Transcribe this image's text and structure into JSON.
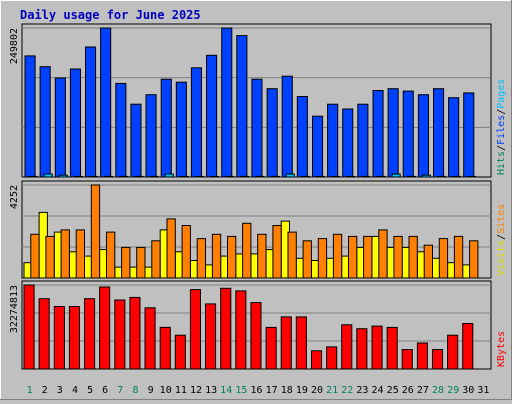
{
  "chart_data": {
    "type": "bar",
    "title": "Daily usage for June 2025",
    "categories": [
      "1",
      "2",
      "3",
      "4",
      "5",
      "6",
      "7",
      "8",
      "9",
      "10",
      "11",
      "12",
      "13",
      "14",
      "15",
      "16",
      "17",
      "18",
      "19",
      "20",
      "21",
      "22",
      "23",
      "24",
      "25",
      "26",
      "27",
      "28",
      "29",
      "30",
      "31"
    ],
    "weekend_days": [
      "1",
      "7",
      "8",
      "14",
      "15",
      "21",
      "22",
      "28",
      "29"
    ],
    "panels": [
      {
        "name": "hits-files-pages",
        "max_label": "249802",
        "ymax": 249802,
        "legend": [
          {
            "label": "Hits",
            "color": "#00805c"
          },
          {
            "label": "/",
            "color": "#000000"
          },
          {
            "label": "Files",
            "color": "#0040ff"
          },
          {
            "label": "/",
            "color": "#000000"
          },
          {
            "label": "Pages",
            "color": "#00c0ff"
          }
        ],
        "series": [
          {
            "name": "Hits",
            "color": "#0040ff",
            "values": [
              203000,
              185000,
              166000,
              181000,
              218000,
              249802,
              157000,
              122000,
              138000,
              164000,
              159000,
              183000,
              204000,
              249802,
              237000,
              164000,
              148000,
              169000,
              135000,
              102000,
              122000,
              114000,
              122000,
              145000,
              148000,
              144000,
              138000,
              148000,
              133000,
              141000,
              0
            ]
          },
          {
            "name": "Pages",
            "color": "#00c0ff",
            "values": [
              1000,
              5000,
              3000,
              1000,
              1000,
              1000,
              1000,
              1000,
              1000,
              5000,
              1000,
              1000,
              1000,
              1000,
              1000,
              1000,
              1000,
              5000,
              1000,
              1000,
              1000,
              1000,
              1000,
              1000,
              5000,
              1000,
              3000,
              1000,
              1000,
              1000,
              0
            ]
          }
        ]
      },
      {
        "name": "visits-sites",
        "max_label": "4252",
        "ymax": 4252,
        "legend": [
          {
            "label": "Visits",
            "color": "#e0e000"
          },
          {
            "label": "/",
            "color": "#000000"
          },
          {
            "label": "Sites",
            "color": "#ff8000"
          }
        ],
        "series": [
          {
            "name": "Visits",
            "color": "#ffff00",
            "values": [
              700,
              3000,
              2100,
              1200,
              1000,
              1300,
              500,
              500,
              500,
              2200,
              1200,
              800,
              600,
              1000,
              1100,
              1100,
              1300,
              2600,
              900,
              800,
              900,
              1000,
              1400,
              1900,
              1400,
              1400,
              1200,
              900,
              700,
              600,
              0
            ]
          },
          {
            "name": "Sites",
            "color": "#ff8000",
            "values": [
              2000,
              1900,
              2200,
              2200,
              4252,
              2100,
              1400,
              1400,
              1700,
              2700,
              2400,
              1800,
              2000,
              1900,
              2500,
              2000,
              2400,
              2100,
              1700,
              1800,
              2000,
              1900,
              1900,
              2200,
              1900,
              1900,
              1500,
              1800,
              1900,
              1700,
              0
            ]
          }
        ]
      },
      {
        "name": "kbytes",
        "max_label": "32274813",
        "ymax": 32274813,
        "legend": [
          {
            "label": "KBytes",
            "color": "#ff0000"
          }
        ],
        "series": [
          {
            "name": "KBytes",
            "color": "#ff0000",
            "values": [
              32274813,
              27000000,
              24000000,
              24000000,
              27000000,
              31500000,
              26500000,
              27500000,
              23500000,
              16000000,
              13000000,
              30500000,
              25000000,
              31000000,
              30000000,
              25500000,
              16000000,
              20000000,
              20000000,
              7000000,
              8500000,
              17000000,
              15500000,
              16500000,
              16000000,
              7500000,
              10000000,
              7500000,
              13000000,
              17500000,
              0
            ]
          }
        ]
      }
    ]
  }
}
